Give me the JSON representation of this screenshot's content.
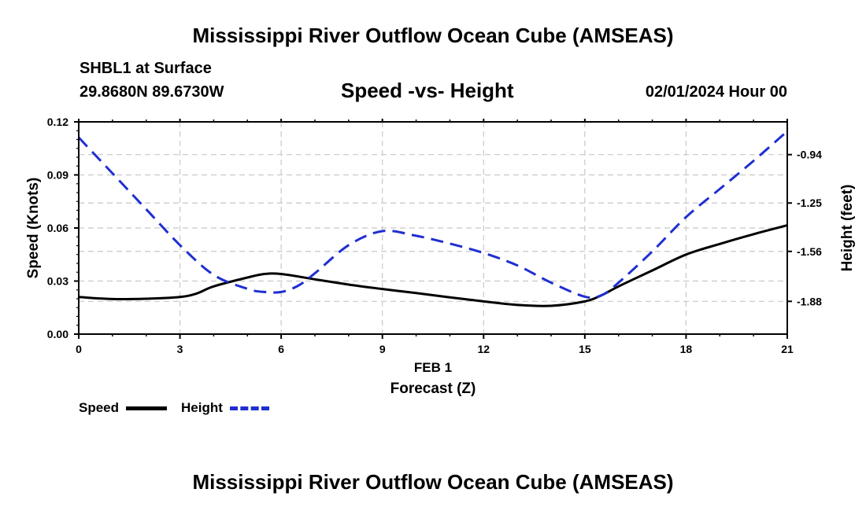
{
  "header": {
    "main_title": "Mississippi River Outflow Ocean Cube (AMSEAS)",
    "station": "SHBL1 at Surface",
    "coords": "29.8680N  89.6730W",
    "chart_title": "Speed -vs- Height",
    "datetime": "02/01/2024 Hour 00"
  },
  "footer": {
    "title": "Mississippi River Outflow Ocean Cube (AMSEAS)"
  },
  "chart_data": {
    "type": "line",
    "title": "Speed -vs- Height",
    "xlabel": "Forecast (Z)",
    "xlabel_date": "FEB 1",
    "ylabel": "Speed (Knots)",
    "ylabel_right": "Height (feet)",
    "xlim": [
      0,
      21
    ],
    "ylim": [
      0,
      0.12
    ],
    "ylim_right": [
      -2.09,
      -0.73
    ],
    "x_ticks": [
      0,
      3,
      6,
      9,
      12,
      15,
      18,
      21
    ],
    "x_tick_labels": [
      "0",
      "3",
      "6",
      "9",
      "12",
      "15",
      "18",
      "21"
    ],
    "y_ticks": [
      0,
      0.03,
      0.06,
      0.09,
      0.12
    ],
    "y_tick_labels": [
      "0.00",
      "0.03",
      "0.06",
      "0.09",
      "0.12"
    ],
    "y_right_ticks": [
      -0.94,
      -1.25,
      -1.56,
      -1.88
    ],
    "y_right_tick_labels": [
      "-0.94",
      "-1.25",
      "-1.56",
      "-1.88"
    ],
    "grid": true,
    "series": [
      {
        "name": "Speed",
        "axis": "left",
        "color": "#000000",
        "dash": "solid",
        "x": [
          0,
          1,
          2,
          3,
          3.5,
          4,
          5,
          5.5,
          6,
          7,
          8,
          9,
          10,
          11,
          12,
          13,
          14,
          15,
          15.5,
          16,
          17,
          18,
          19,
          20,
          21
        ],
        "values": [
          0.021,
          0.0198,
          0.02,
          0.021,
          0.023,
          0.027,
          0.032,
          0.034,
          0.034,
          0.031,
          0.028,
          0.0255,
          0.0232,
          0.0208,
          0.0185,
          0.0165,
          0.016,
          0.0185,
          0.022,
          0.027,
          0.036,
          0.045,
          0.051,
          0.0565,
          0.0615
        ]
      },
      {
        "name": "Height",
        "axis": "right",
        "color": "#1f2fd1",
        "dash": "dashed",
        "x": [
          0,
          1,
          2,
          3,
          4,
          5,
          5.5,
          6,
          6.5,
          7,
          8,
          9,
          10,
          11,
          12,
          13,
          14,
          15,
          15.5,
          16,
          17,
          18,
          19,
          20,
          21
        ],
        "values": [
          -0.83,
          -1.06,
          -1.29,
          -1.52,
          -1.71,
          -1.8,
          -1.82,
          -1.82,
          -1.78,
          -1.7,
          -1.52,
          -1.43,
          -1.46,
          -1.51,
          -1.57,
          -1.65,
          -1.76,
          -1.85,
          -1.84,
          -1.76,
          -1.56,
          -1.34,
          -1.16,
          -0.98,
          -0.79
        ]
      }
    ]
  },
  "legend": {
    "speed_label": "Speed",
    "height_label": "Height",
    "speed_color": "#000000",
    "height_color": "#1f2fd1"
  }
}
